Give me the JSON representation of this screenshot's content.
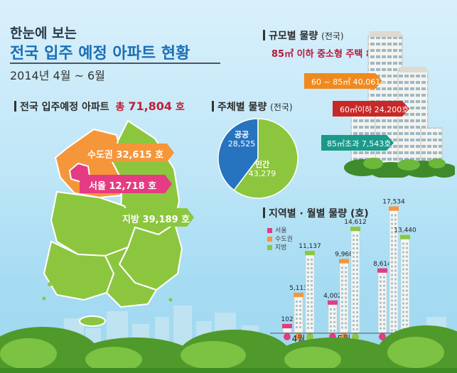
{
  "title": {
    "line1": "한눈에 보는",
    "line2": "전국 입주 예정 아파트 현황",
    "period": "2014년 4월 ~ 6월"
  },
  "total": {
    "label": "전국 입주예정 아파트",
    "prefix": "총",
    "value": "71,804",
    "unit": "호"
  },
  "map_labels": {
    "capital": "수도권 32,615 호",
    "seoul": "서울 12,718 호",
    "local": "지방 39,189 호"
  },
  "colors": {
    "seoul": "#e53b82",
    "capital": "#f5963a",
    "local": "#8cc63f",
    "public": "#2674c0",
    "private": "#8cc63f",
    "large": "#1a9a8a",
    "mid": "#c82828",
    "small": "#f08a1e"
  },
  "size_section": {
    "title": "규모별 물량",
    "sub": "(전국)",
    "headline": "85㎡ 이하 중소형 주택 89.5%",
    "items": [
      {
        "label": "60 ~ 85㎡ 40,061호"
      },
      {
        "label": "60㎡이하 24,200호"
      },
      {
        "label": "85㎡초과 7,543호"
      }
    ]
  },
  "ownership": {
    "title": "주체별 물량",
    "sub": "(전국)",
    "public_label": "공공",
    "public_value": "28,525",
    "private_label": "민간",
    "private_value": "43,279"
  },
  "chart_data": {
    "type": "bar",
    "title": "지역별 · 월별 물량 (호)",
    "categories": [
      "4월",
      "5월",
      "6월"
    ],
    "series": [
      {
        "name": "서울",
        "values": [
          102,
          4002,
          8614
        ],
        "labels": [
          "102",
          "4,002",
          "8,614"
        ]
      },
      {
        "name": "수도권",
        "values": [
          5113,
          9968,
          17534
        ],
        "labels": [
          "5,113",
          "9,968",
          "17,534"
        ]
      },
      {
        "name": "지방",
        "values": [
          11137,
          14612,
          13440
        ],
        "labels": [
          "11,137",
          "14,612",
          "13,440"
        ]
      }
    ],
    "ylim": [
      0,
      18000
    ],
    "grid": false,
    "legend": "top-left"
  },
  "pie_data": {
    "type": "pie",
    "title": "주체별 물량",
    "slices": [
      {
        "label": "공공",
        "value": 28525
      },
      {
        "label": "민간",
        "value": 43279
      }
    ]
  }
}
